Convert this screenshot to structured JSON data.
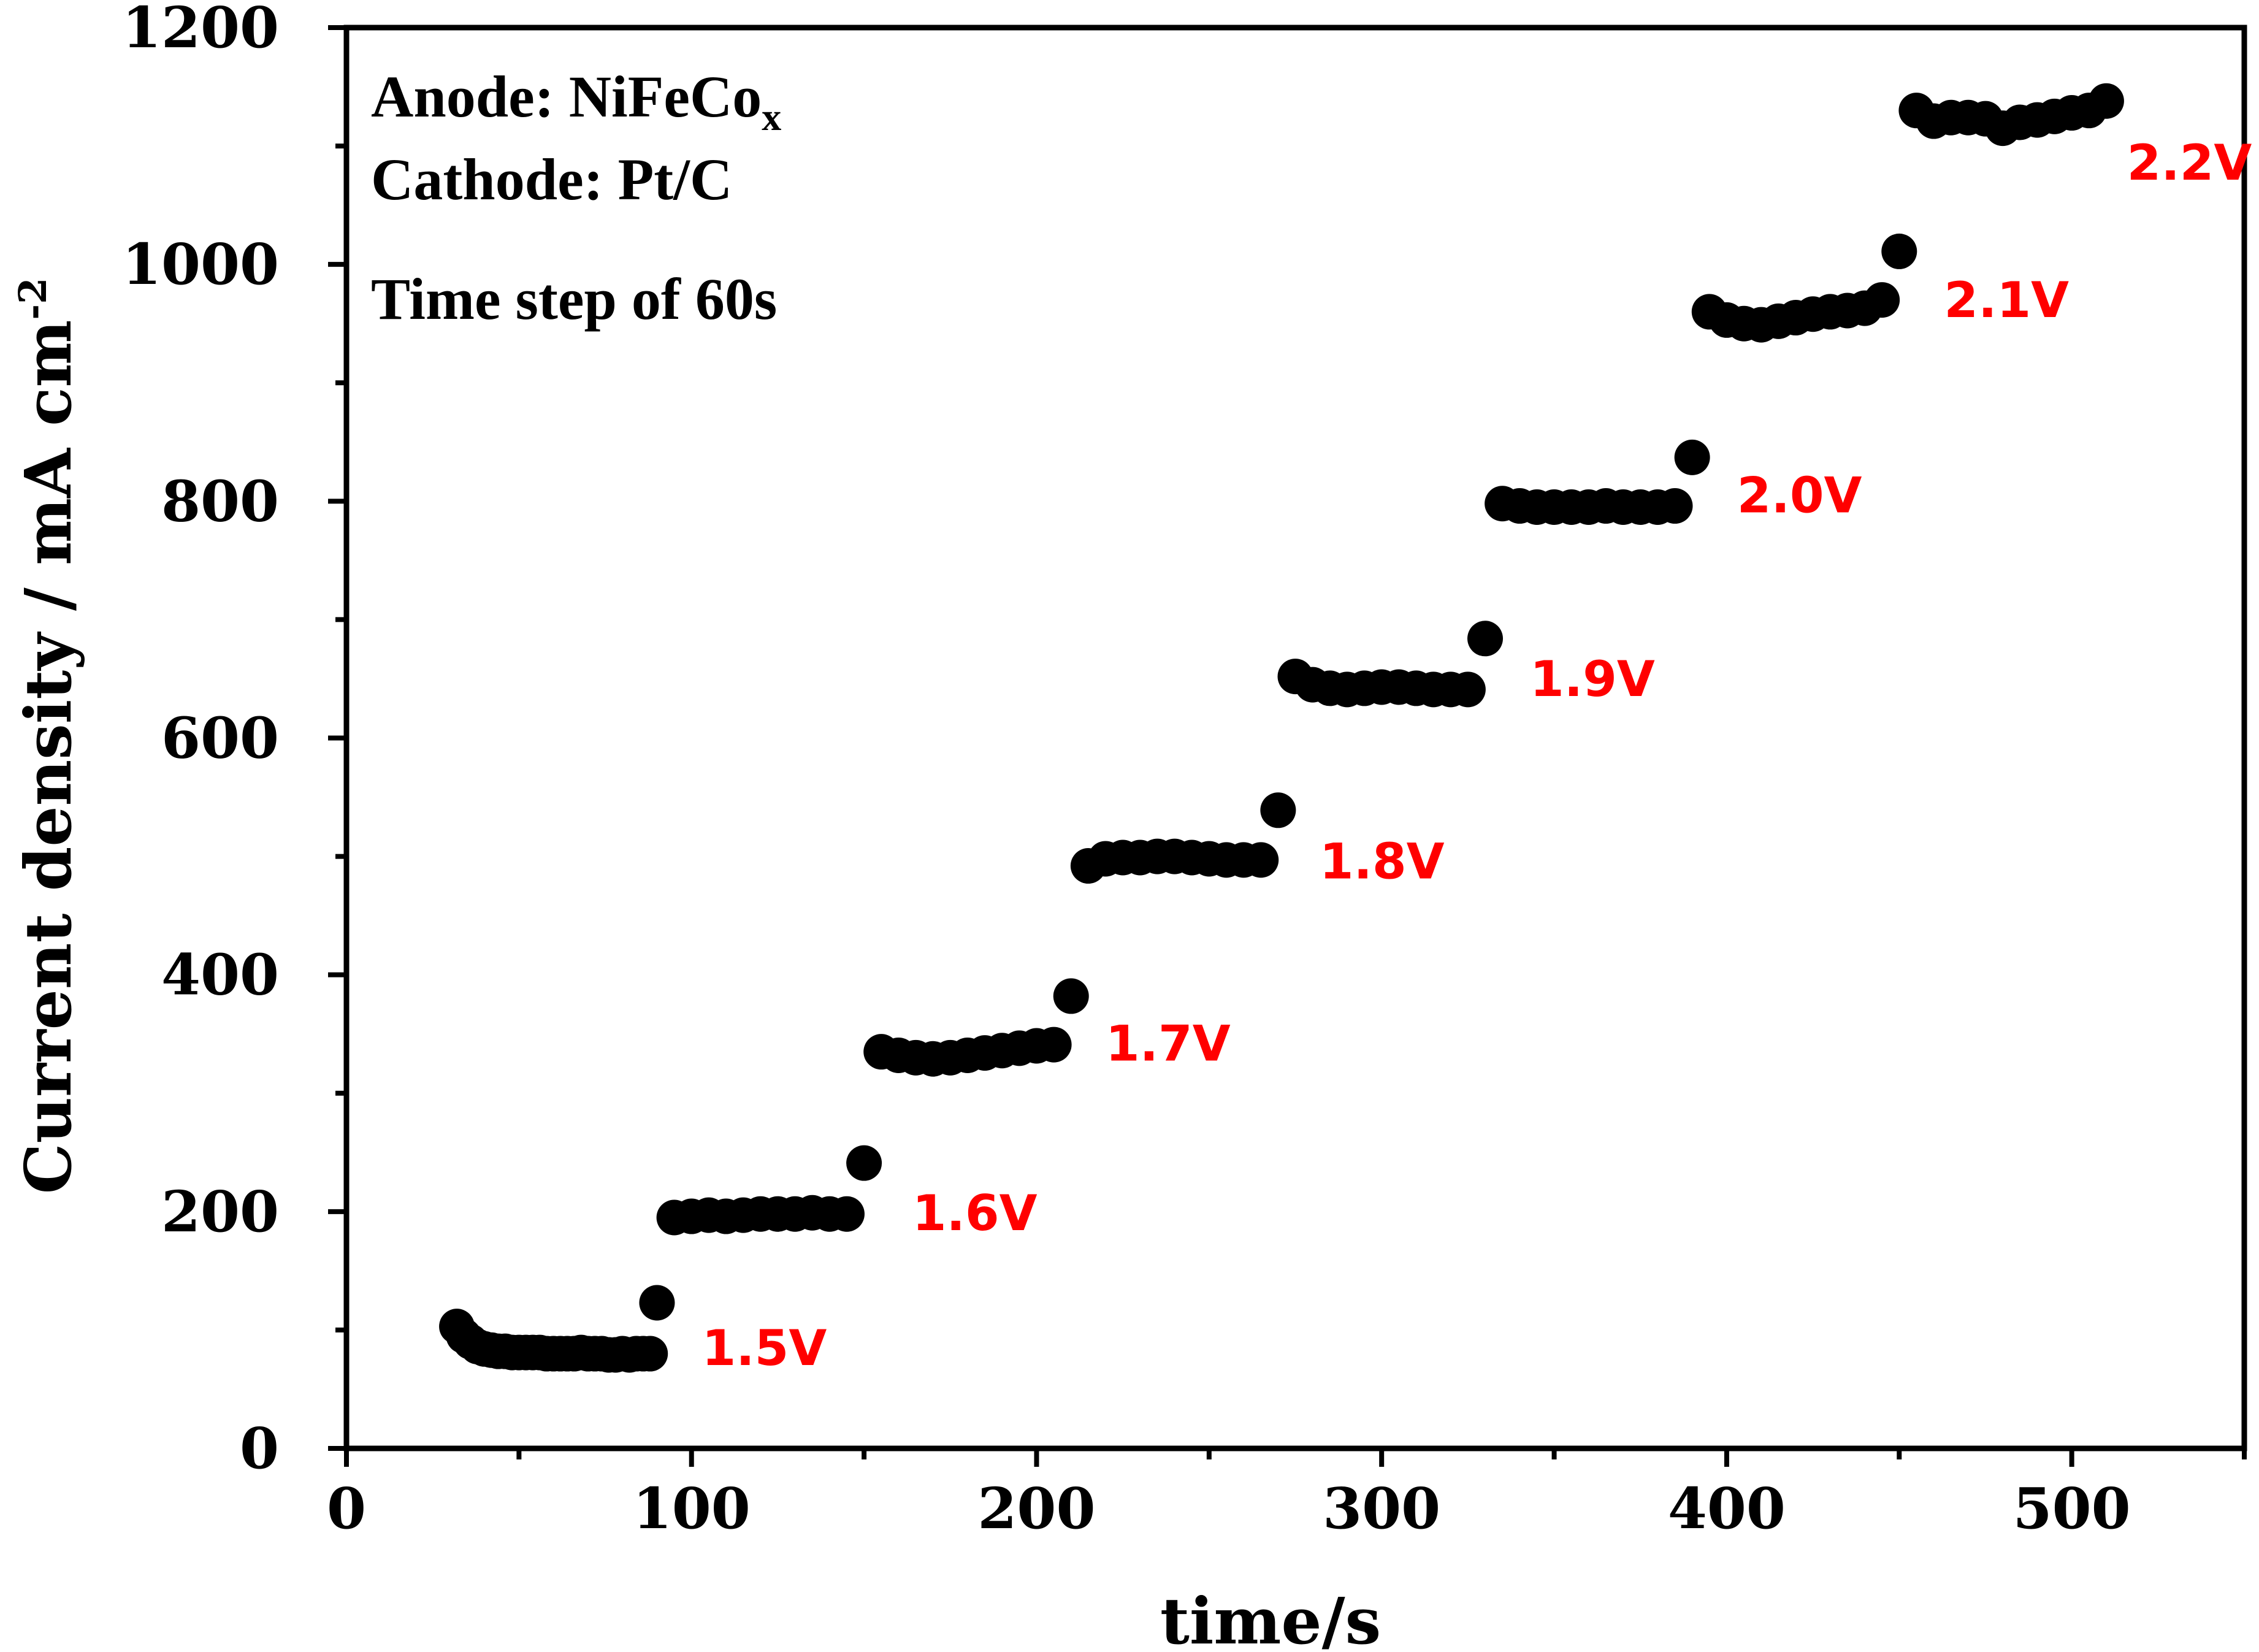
{
  "chart_data": {
    "type": "scatter",
    "title": "",
    "xlabel": "time/s",
    "ylabel_main": "Current density / mA cm",
    "ylabel_sup": "-2",
    "xlim": [
      0,
      550
    ],
    "ylim": [
      0,
      1200
    ],
    "x_ticks": [
      0,
      100,
      200,
      300,
      400,
      500
    ],
    "y_ticks": [
      0,
      200,
      400,
      600,
      800,
      1000,
      1200
    ],
    "grid": false,
    "marker_color": "#000000",
    "label_color": "#ff0000",
    "annotations": {
      "anode_prefix": "Anode: NiFeCo",
      "anode_sub": "x",
      "cathode": "Cathode: Pt/C",
      "time_step": "Time step of 60s"
    },
    "series": [
      {
        "name": "1.5V",
        "x": [
          32,
          34,
          36,
          38,
          40,
          42,
          44,
          46,
          48,
          50,
          52,
          54,
          56,
          58,
          60,
          62,
          64,
          66,
          68,
          70,
          72,
          74,
          76,
          78,
          80,
          82,
          84,
          86,
          88,
          90
        ],
        "y": [
          103,
          95,
          90,
          86,
          84,
          83,
          82,
          82,
          81,
          81,
          81,
          81,
          81,
          80,
          80,
          80,
          80,
          80,
          81,
          80,
          80,
          80,
          79,
          79,
          80,
          79,
          80,
          80,
          80,
          123
        ]
      },
      {
        "name": "1.6V",
        "x": [
          95,
          100,
          105,
          110,
          115,
          120,
          125,
          130,
          135,
          140,
          145,
          150
        ],
        "y": [
          195,
          196,
          197,
          196,
          197,
          198,
          198,
          198,
          199,
          198,
          198,
          241
        ]
      },
      {
        "name": "1.7V",
        "x": [
          155,
          160,
          165,
          170,
          175,
          180,
          185,
          190,
          195,
          200,
          205,
          210
        ],
        "y": [
          335,
          332,
          330,
          329,
          330,
          332,
          334,
          336,
          338,
          340,
          341,
          382
        ]
      },
      {
        "name": "1.8V",
        "x": [
          215,
          220,
          225,
          230,
          235,
          240,
          245,
          250,
          255,
          260,
          265,
          270
        ],
        "y": [
          492,
          498,
          499,
          499,
          500,
          500,
          499,
          498,
          497,
          497,
          497,
          539
        ]
      },
      {
        "name": "1.9V",
        "x": [
          275,
          280,
          285,
          290,
          295,
          300,
          305,
          310,
          315,
          320,
          325,
          330
        ],
        "y": [
          652,
          645,
          642,
          641,
          642,
          643,
          643,
          642,
          641,
          641,
          641,
          684
        ]
      },
      {
        "name": "2.0V",
        "x": [
          335,
          340,
          345,
          350,
          355,
          360,
          365,
          370,
          375,
          380,
          385,
          390
        ],
        "y": [
          798,
          796,
          795,
          795,
          795,
          795,
          796,
          795,
          795,
          795,
          796,
          837
        ]
      },
      {
        "name": "2.1V",
        "x": [
          395,
          400,
          405,
          410,
          415,
          420,
          425,
          430,
          435,
          440,
          445,
          450
        ],
        "y": [
          960,
          953,
          950,
          949,
          952,
          955,
          958,
          960,
          961,
          963,
          970,
          1011
        ]
      },
      {
        "name": "2.2V",
        "x": [
          455,
          460,
          465,
          470,
          475,
          480,
          485,
          490,
          495,
          500,
          505,
          510
        ],
        "y": [
          1130,
          1121,
          1124,
          1124,
          1123,
          1115,
          1120,
          1122,
          1125,
          1128,
          1130,
          1138
        ]
      }
    ],
    "voltage_labels": [
      {
        "text": "1.5V",
        "x": 103,
        "y": 85
      },
      {
        "text": "1.6V",
        "x": 164,
        "y": 199
      },
      {
        "text": "1.7V",
        "x": 220,
        "y": 342
      },
      {
        "text": "1.8V",
        "x": 282,
        "y": 496
      },
      {
        "text": "1.9V",
        "x": 343,
        "y": 650
      },
      {
        "text": "2.0V",
        "x": 403,
        "y": 805
      },
      {
        "text": "2.1V",
        "x": 463,
        "y": 970
      },
      {
        "text": "2.2V",
        "x": 516,
        "y": 1086
      }
    ]
  }
}
